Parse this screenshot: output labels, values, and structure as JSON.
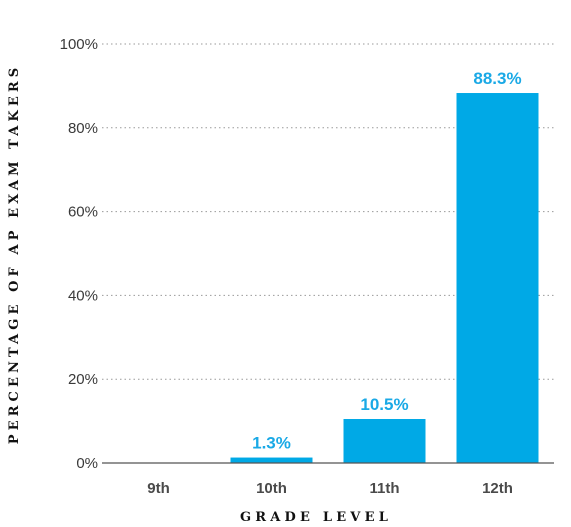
{
  "chart_data": {
    "type": "bar",
    "categories": [
      "9th",
      "10th",
      "11th",
      "12th"
    ],
    "values": [
      0,
      1.3,
      10.5,
      88.3
    ],
    "data_labels": [
      "",
      "1.3%",
      "10.5%",
      "88.3%"
    ],
    "xlabel": "GRADE LEVEL",
    "ylabel": "PERCENTAGE OF AP EXAM TAKERS",
    "ylim": [
      0,
      100
    ],
    "yticks": [
      0,
      20,
      40,
      60,
      80,
      100
    ],
    "ytick_labels": [
      "0%",
      "20%",
      "40%",
      "60%",
      "80%",
      "100%"
    ],
    "grid": true,
    "legend": "none",
    "colors": {
      "bar": "#00a9e6",
      "label": "#1aa9e6"
    }
  }
}
